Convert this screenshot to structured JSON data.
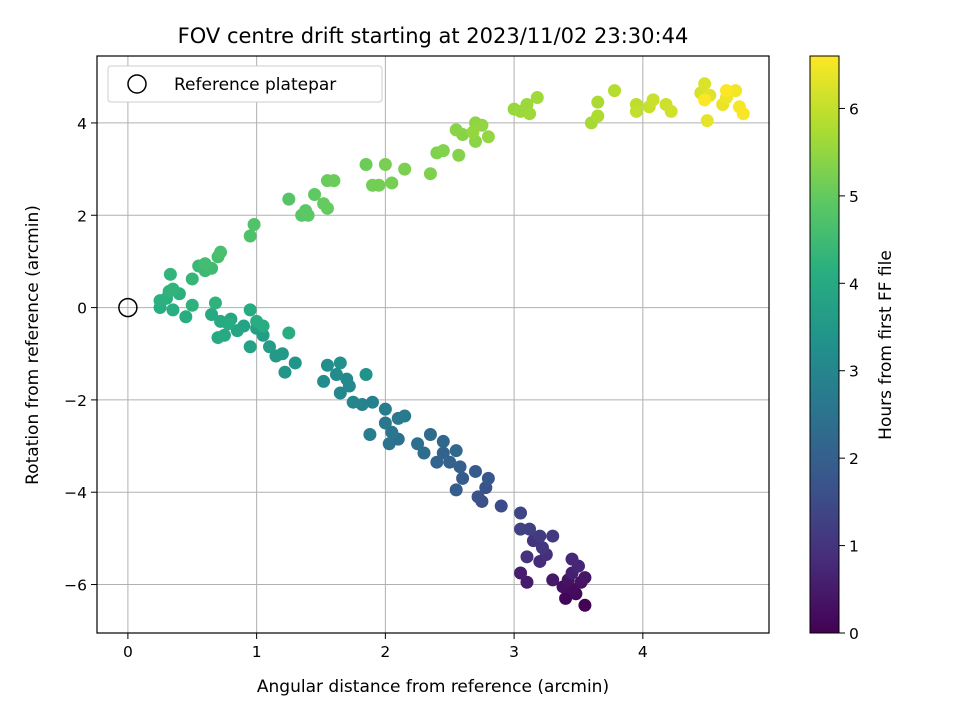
{
  "chart_data": {
    "type": "scatter",
    "title": "FOV centre drift starting at 2023/11/02 23:30:44",
    "xlabel": "Angular distance from reference (arcmin)",
    "ylabel": "Rotation from reference (arcmin)",
    "colorbar_label": "Hours from first FF file",
    "colormap": "viridis",
    "xlim": [
      -0.24,
      4.98
    ],
    "ylim": [
      -7.05,
      5.45
    ],
    "clim": [
      0,
      6.6
    ],
    "x_ticks": [
      0,
      1,
      2,
      3,
      4
    ],
    "x_tick_labels": [
      "0",
      "1",
      "2",
      "3",
      "4"
    ],
    "y_ticks": [
      -6,
      -4,
      -2,
      0,
      2,
      4
    ],
    "y_tick_labels": [
      "−6",
      "−4",
      "−2",
      "0",
      "2",
      "4"
    ],
    "colorbar_ticks": [
      0,
      1,
      2,
      3,
      4,
      5,
      6
    ],
    "colorbar_tick_labels": [
      "0",
      "1",
      "2",
      "3",
      "4",
      "5",
      "6"
    ],
    "grid": true,
    "legend": {
      "position": "top-left",
      "entries": [
        "Reference platepar"
      ]
    },
    "reference_point": {
      "x": 0,
      "y": 0,
      "name": "Reference platepar"
    },
    "points": [
      [
        3.55,
        -6.45,
        0.05
      ],
      [
        3.4,
        -6.3,
        0.1
      ],
      [
        3.48,
        -6.2,
        0.15
      ],
      [
        3.45,
        -6.1,
        0.2
      ],
      [
        3.38,
        -6.05,
        0.25
      ],
      [
        3.52,
        -5.95,
        0.3
      ],
      [
        3.42,
        -5.9,
        0.35
      ],
      [
        3.55,
        -5.85,
        0.4
      ],
      [
        3.3,
        -5.9,
        0.45
      ],
      [
        3.1,
        -5.95,
        0.5
      ],
      [
        3.05,
        -5.75,
        0.55
      ],
      [
        3.45,
        -5.75,
        0.6
      ],
      [
        3.5,
        -5.6,
        0.7
      ],
      [
        3.45,
        -5.45,
        0.75
      ],
      [
        3.2,
        -5.5,
        0.8
      ],
      [
        3.25,
        -5.35,
        0.9
      ],
      [
        3.1,
        -5.4,
        0.95
      ],
      [
        3.15,
        -5.05,
        1.0
      ],
      [
        3.22,
        -5.2,
        1.05
      ],
      [
        3.3,
        -4.95,
        1.1
      ],
      [
        3.2,
        -4.95,
        1.15
      ],
      [
        3.12,
        -4.8,
        1.25
      ],
      [
        3.05,
        -4.8,
        1.3
      ],
      [
        3.05,
        -4.45,
        1.4
      ],
      [
        2.9,
        -4.3,
        1.5
      ],
      [
        2.75,
        -4.2,
        1.6
      ],
      [
        2.72,
        -4.1,
        1.65
      ],
      [
        2.78,
        -3.9,
        1.7
      ],
      [
        2.8,
        -3.7,
        1.8
      ],
      [
        2.7,
        -3.55,
        1.85
      ],
      [
        2.6,
        -3.7,
        1.9
      ],
      [
        2.55,
        -3.95,
        1.95
      ],
      [
        2.58,
        -3.45,
        2.0
      ],
      [
        2.5,
        -3.35,
        2.05
      ],
      [
        2.45,
        -3.15,
        2.1
      ],
      [
        2.4,
        -3.35,
        2.15
      ],
      [
        2.45,
        -2.9,
        2.2
      ],
      [
        2.55,
        -3.1,
        2.25
      ],
      [
        2.35,
        -2.75,
        2.3
      ],
      [
        2.3,
        -3.15,
        2.35
      ],
      [
        2.25,
        -2.95,
        2.4
      ],
      [
        2.1,
        -2.85,
        2.45
      ],
      [
        2.03,
        -2.95,
        2.5
      ],
      [
        2.05,
        -2.7,
        2.55
      ],
      [
        2.0,
        -2.5,
        2.6
      ],
      [
        2.1,
        -2.4,
        2.65
      ],
      [
        2.15,
        -2.35,
        2.7
      ],
      [
        2.0,
        -2.2,
        2.75
      ],
      [
        1.88,
        -2.75,
        2.8
      ],
      [
        1.9,
        -2.05,
        2.85
      ],
      [
        1.82,
        -2.1,
        2.9
      ],
      [
        1.75,
        -2.05,
        2.95
      ],
      [
        1.65,
        -1.85,
        3.0
      ],
      [
        1.72,
        -1.7,
        3.05
      ],
      [
        1.7,
        -1.55,
        3.1
      ],
      [
        1.62,
        -1.45,
        3.15
      ],
      [
        1.52,
        -1.6,
        3.2
      ],
      [
        1.55,
        -1.25,
        3.25
      ],
      [
        1.65,
        -1.2,
        3.3
      ],
      [
        1.85,
        -1.45,
        3.35
      ],
      [
        1.3,
        -1.2,
        3.4
      ],
      [
        1.22,
        -1.4,
        3.45
      ],
      [
        1.2,
        -1.0,
        3.5
      ],
      [
        1.15,
        -1.05,
        3.55
      ],
      [
        1.1,
        -0.85,
        3.6
      ],
      [
        1.05,
        -0.6,
        3.65
      ],
      [
        1.0,
        -0.45,
        3.7
      ],
      [
        0.95,
        -0.85,
        3.75
      ],
      [
        0.9,
        -0.4,
        3.8
      ],
      [
        0.85,
        -0.5,
        3.85
      ],
      [
        0.8,
        -0.25,
        3.9
      ],
      [
        0.75,
        -0.6,
        3.95
      ],
      [
        0.7,
        -0.65,
        3.98
      ],
      [
        0.65,
        -0.15,
        4.0
      ],
      [
        0.72,
        -0.3,
        4.02
      ],
      [
        0.78,
        -0.35,
        4.03
      ],
      [
        0.95,
        -0.05,
        4.05
      ],
      [
        1.0,
        -0.3,
        4.07
      ],
      [
        1.05,
        -0.4,
        4.08
      ],
      [
        1.25,
        -0.55,
        4.09
      ],
      [
        0.45,
        -0.2,
        4.1
      ],
      [
        0.35,
        -0.05,
        4.12
      ],
      [
        0.25,
        0.0,
        4.14
      ],
      [
        0.3,
        0.2,
        4.16
      ],
      [
        0.25,
        0.15,
        4.18
      ],
      [
        0.4,
        0.3,
        4.2
      ],
      [
        0.5,
        0.05,
        4.22
      ],
      [
        0.68,
        0.1,
        4.24
      ],
      [
        0.32,
        0.35,
        4.26
      ],
      [
        0.35,
        0.4,
        4.28
      ],
      [
        0.33,
        0.72,
        4.3
      ],
      [
        0.5,
        0.62,
        4.35
      ],
      [
        0.55,
        0.9,
        4.4
      ],
      [
        0.6,
        0.8,
        4.45
      ],
      [
        0.65,
        0.85,
        4.5
      ],
      [
        0.6,
        0.95,
        4.55
      ],
      [
        0.7,
        1.1,
        4.6
      ],
      [
        0.72,
        1.2,
        4.65
      ],
      [
        0.95,
        1.55,
        4.7
      ],
      [
        0.98,
        1.8,
        4.75
      ],
      [
        1.25,
        2.35,
        4.8
      ],
      [
        1.35,
        2.0,
        4.85
      ],
      [
        1.38,
        2.1,
        4.9
      ],
      [
        1.4,
        2.0,
        4.92
      ],
      [
        1.45,
        2.45,
        4.95
      ],
      [
        1.52,
        2.25,
        5.0
      ],
      [
        1.55,
        2.15,
        5.02
      ],
      [
        1.55,
        2.75,
        5.05
      ],
      [
        1.6,
        2.75,
        5.08
      ],
      [
        1.85,
        3.1,
        5.1
      ],
      [
        1.9,
        2.65,
        5.15
      ],
      [
        1.95,
        2.65,
        5.18
      ],
      [
        2.05,
        2.7,
        5.2
      ],
      [
        2.0,
        3.1,
        5.22
      ],
      [
        2.15,
        3.0,
        5.25
      ],
      [
        2.35,
        2.9,
        5.28
      ],
      [
        2.4,
        3.35,
        5.3
      ],
      [
        2.45,
        3.4,
        5.32
      ],
      [
        2.57,
        3.3,
        5.35
      ],
      [
        2.6,
        3.75,
        5.38
      ],
      [
        2.55,
        3.85,
        5.4
      ],
      [
        2.7,
        3.6,
        5.42
      ],
      [
        2.7,
        4.0,
        5.45
      ],
      [
        2.75,
        3.95,
        5.48
      ],
      [
        2.8,
        3.7,
        5.5
      ],
      [
        2.68,
        3.8,
        5.52
      ],
      [
        3.0,
        4.3,
        5.55
      ],
      [
        3.05,
        4.25,
        5.58
      ],
      [
        3.1,
        4.4,
        5.6
      ],
      [
        3.12,
        4.2,
        5.62
      ],
      [
        3.18,
        4.55,
        5.65
      ],
      [
        3.6,
        4.0,
        5.7
      ],
      [
        3.65,
        4.45,
        5.75
      ],
      [
        3.65,
        4.15,
        5.78
      ],
      [
        3.78,
        4.7,
        5.85
      ],
      [
        3.95,
        4.4,
        5.95
      ],
      [
        3.95,
        4.25,
        6.0
      ],
      [
        4.05,
        4.35,
        6.05
      ],
      [
        4.08,
        4.5,
        6.08
      ],
      [
        4.18,
        4.4,
        6.1
      ],
      [
        4.22,
        4.25,
        6.15
      ],
      [
        4.45,
        4.65,
        6.2
      ],
      [
        4.48,
        4.85,
        6.25
      ],
      [
        4.52,
        4.6,
        6.3
      ],
      [
        4.5,
        4.05,
        6.35
      ],
      [
        4.62,
        4.4,
        6.4
      ],
      [
        4.65,
        4.55,
        6.45
      ],
      [
        4.72,
        4.7,
        6.5
      ],
      [
        4.75,
        4.35,
        6.52
      ],
      [
        4.78,
        4.2,
        6.55
      ],
      [
        4.48,
        4.5,
        6.57
      ],
      [
        4.65,
        4.7,
        6.58
      ]
    ]
  }
}
